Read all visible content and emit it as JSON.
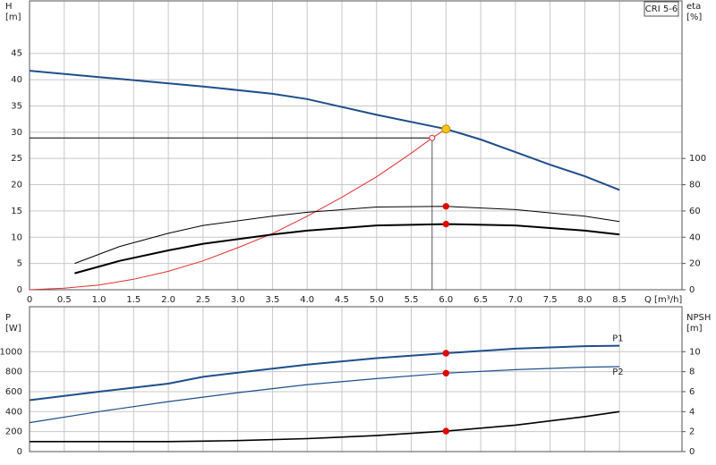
{
  "chart_data": [
    {
      "type": "line",
      "y_label": "H",
      "y_unit": "[m]",
      "y2_label": "eta",
      "y2_unit": "[%]",
      "x_label": "Q [m³/h]",
      "legend_box": "CRI 5-6",
      "xlim": [
        0,
        9.4
      ],
      "ylim": [
        0,
        55
      ],
      "y2lim": [
        0,
        220
      ],
      "xticks": [
        0,
        0.5,
        {
          "value": 1,
          "label": "1.0"
        },
        1.5,
        {
          "value": 2,
          "label": "2.0"
        },
        2.5,
        {
          "value": 3,
          "label": "3.0"
        },
        3.5,
        {
          "value": 4,
          "label": "4.0"
        },
        4.5,
        {
          "value": 5,
          "label": "5.0"
        },
        5.5,
        {
          "value": 6,
          "label": "6.0"
        },
        6.5,
        {
          "value": 7,
          "label": "7.0"
        },
        7.5,
        {
          "value": 8,
          "label": "8.0"
        },
        8.5
      ],
      "yticks": [
        0,
        5,
        10,
        15,
        20,
        25,
        30,
        35,
        40,
        45
      ],
      "y2ticks": [
        0,
        20,
        40,
        60,
        80,
        100
      ],
      "grid": true,
      "series": [
        {
          "color": "#1f4e8c",
          "line_width": 2,
          "x": [
            0,
            1,
            2.5,
            3.5,
            4,
            5,
            6,
            6.5,
            7,
            7.5,
            8,
            8.5
          ],
          "values": [
            41.7,
            40.5,
            38.7,
            37.3,
            36.3,
            33.3,
            30.6,
            28.6,
            26.2,
            23.8,
            21.6,
            19
          ]
        },
        {
          "color": "#e03030",
          "line_width": 1,
          "x": [
            0,
            0.5,
            1,
            1.5,
            2,
            2.5,
            3,
            3.5,
            4,
            4.5,
            5,
            5.5,
            5.8,
            6
          ],
          "values": [
            0,
            0.3,
            0.9,
            2,
            3.5,
            5.5,
            8,
            10.7,
            14,
            17.6,
            21.5,
            26,
            28.9,
            30.6
          ]
        },
        {
          "color": "#000000",
          "line_width": 1,
          "axis": "y2",
          "x": [
            0.65,
            1.3,
            2,
            2.5,
            3.5,
            4,
            5,
            6,
            7,
            8,
            8.5
          ],
          "values": [
            20,
            33,
            43,
            49,
            56,
            59,
            63,
            63.5,
            61,
            56,
            52
          ]
        },
        {
          "color": "#000000",
          "line_width": 2,
          "axis": "y2",
          "x": [
            0.65,
            1.3,
            2,
            2.5,
            3.5,
            4,
            5,
            6,
            7,
            8,
            8.5
          ],
          "values": [
            12.5,
            22,
            30,
            35,
            42,
            45,
            49,
            50,
            49,
            45,
            42
          ]
        }
      ],
      "markers": [
        {
          "x": 6,
          "y": 30.6,
          "color": "#f5c518"
        },
        {
          "x": 6,
          "y": 63.5,
          "axis": "y2",
          "color": "#e00000"
        },
        {
          "x": 6,
          "y": 50,
          "axis": "y2",
          "color": "#e00000"
        }
      ],
      "reference_point": {
        "x": 5.8,
        "y": 28.9,
        "color": "#e03030"
      }
    },
    {
      "type": "line",
      "y_label": "P",
      "y_unit": "[W]",
      "y2_label": "NPSH",
      "y2_unit": "[m]",
      "xlim": [
        0,
        9.4
      ],
      "ylim": [
        0,
        1450
      ],
      "y2lim": [
        0,
        14.5
      ],
      "xgrid": [
        0,
        0.5,
        1,
        1.5,
        2,
        2.5,
        3,
        3.5,
        4,
        4.5,
        5,
        5.5,
        6,
        6.5,
        7,
        7.5,
        8,
        8.5
      ],
      "yticks": [
        0,
        200,
        400,
        600,
        800,
        1000
      ],
      "y2ticks": [
        0,
        2,
        4,
        6,
        8,
        10
      ],
      "grid": true,
      "series": [
        {
          "name": "P1",
          "color": "#1f4e8c",
          "line_width": 2,
          "x": [
            0,
            1,
            2,
            2.5,
            3,
            4,
            5,
            6,
            7,
            8,
            8.5
          ],
          "values": [
            515,
            600,
            680,
            748,
            790,
            870,
            935,
            985,
            1030,
            1055,
            1060
          ]
        },
        {
          "name": "P2",
          "color": "#1f4e8c",
          "line_width": 1.2,
          "x": [
            0,
            1,
            2,
            2.5,
            3,
            4,
            5,
            6,
            7,
            8,
            8.5
          ],
          "values": [
            290,
            400,
            500,
            545,
            590,
            670,
            730,
            785,
            820,
            845,
            850
          ]
        },
        {
          "color": "#000000",
          "line_width": 1.6,
          "axis": "y2",
          "x": [
            0,
            1,
            2,
            2.5,
            3,
            4,
            5,
            6,
            7,
            8,
            8.5
          ],
          "values": [
            1,
            1,
            1,
            1.05,
            1.1,
            1.3,
            1.6,
            2.05,
            2.65,
            3.5,
            4
          ]
        }
      ],
      "markers": [
        {
          "x": 6,
          "y": 985,
          "color": "#e00000"
        },
        {
          "x": 6,
          "y": 785,
          "color": "#e00000"
        },
        {
          "x": 6,
          "y": 2.05,
          "axis": "y2",
          "color": "#e00000"
        }
      ]
    }
  ]
}
